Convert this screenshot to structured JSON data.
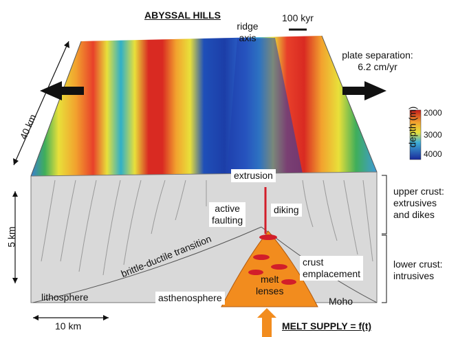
{
  "title": "ABYSSAL HILLS",
  "ridge_axis": {
    "line1": "ridge",
    "line2": "axis"
  },
  "time_scale": "100 kyr",
  "plate_separation": {
    "line1": "plate separation:",
    "line2": "6.2 cm/yr"
  },
  "distance_along": "40 km",
  "depth_legend": {
    "title": "depth (m)",
    "ticks": [
      "2000",
      "3000",
      "4000"
    ]
  },
  "labels": {
    "extrusion": "extrusion",
    "active_faulting": {
      "line1": "active",
      "line2": "faulting"
    },
    "diking": "diking",
    "brittle_ductile": "brittle-ductile transition",
    "lithosphere": "lithosphere",
    "asthenosphere": "asthenosphere",
    "melt_lenses": {
      "line1": "melt",
      "line2": "lenses"
    },
    "crust_emplacement": {
      "line1": "crust",
      "line2": "emplacement"
    },
    "moho": "Moho",
    "depth_scale": "5 km",
    "width_scale": "10 km"
  },
  "upper_crust": {
    "line1": "upper crust:",
    "line2": "extrusives",
    "line3": "and dikes"
  },
  "lower_crust": {
    "line1": "lower crust:",
    "line2": "intrusives"
  },
  "melt_supply": "MELT SUPPLY = f(t)",
  "colors": {
    "melt": "#f28c1e",
    "lens": "#d21e2a",
    "crust": "#d9d9d9",
    "arrow": "#f28c1e"
  }
}
